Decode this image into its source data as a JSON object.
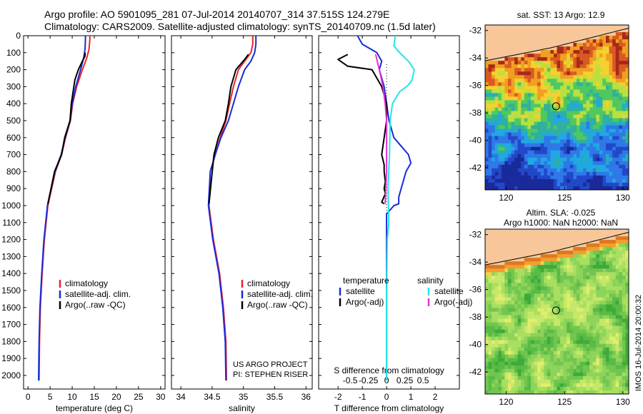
{
  "header": {
    "line1": "Argo profile: AO 5901095_281 07-Jul-2014 20140707_314 37.515S 124.279E",
    "line2": "Climatology: CARS2009. Satellite-adjusted climatology: synTS_20140709.nc (1.5d later)"
  },
  "credits": {
    "project": "US ARGO PROJECT",
    "pi": "PI: STEPHEN RISER"
  },
  "stamp": "IMOS 16-Jul-2014 20:00:32",
  "maps": {
    "sst": {
      "title": "sat. SST: 13 Argo: 12.9",
      "xticks": [
        "120",
        "125",
        "130"
      ],
      "yticks": [
        "-32",
        "-34",
        "-36",
        "-38",
        "-40",
        "-42"
      ]
    },
    "sla": {
      "title1": "Altim. SLA: -0.025",
      "title2": "Argo h1000: NaN h2000: NaN",
      "xticks": [
        "120",
        "125",
        "130"
      ],
      "yticks": [
        "-32",
        "-34",
        "-36",
        "-38",
        "-40",
        "-42"
      ]
    }
  },
  "colors": {
    "climatology": "#e8262a",
    "satellite": "#1a2bd8",
    "argo": "#000000",
    "sal_satellite": "#25e5e5",
    "sal_argo": "#e830d8",
    "land": "#f7c79a"
  },
  "chart_data": [
    {
      "type": "line",
      "name": "temperature",
      "xlabel": "temperature (deg C)",
      "ylabel": "",
      "xlim": [
        -1,
        31
      ],
      "ylim": [
        2080,
        0
      ],
      "xticks": [
        0,
        5,
        10,
        15,
        20,
        25,
        30
      ],
      "yticks": [
        0,
        100,
        200,
        300,
        400,
        500,
        600,
        700,
        800,
        900,
        1000,
        1100,
        1200,
        1300,
        1400,
        1500,
        1600,
        1700,
        1800,
        1900,
        2000
      ],
      "legend": {
        "position": "lower-middle",
        "entries": [
          "climatology",
          "satellite-adj. clim.",
          "Argo(..raw -QC)"
        ]
      },
      "series": [
        {
          "name": "climatology",
          "color": "#e8262a",
          "x": [
            14,
            14,
            13.8,
            13.3,
            12.3,
            11,
            10.1,
            9.6,
            8.5,
            7.6,
            6.2,
            4.5,
            3.7,
            3.2,
            2.8,
            2.6,
            2.5
          ],
          "y": [
            0,
            20,
            80,
            130,
            200,
            300,
            400,
            500,
            600,
            700,
            800,
            1000,
            1200,
            1400,
            1600,
            1800,
            2030
          ]
        },
        {
          "name": "satellite-adj. clim.",
          "color": "#1a2bd8",
          "x": [
            13,
            13,
            12.9,
            12.6,
            11.9,
            10.8,
            10.0,
            9.5,
            8.4,
            7.5,
            6.1,
            4.4,
            3.6,
            3.1,
            2.7,
            2.5,
            2.4
          ],
          "y": [
            0,
            20,
            80,
            130,
            200,
            300,
            400,
            500,
            600,
            700,
            800,
            1000,
            1200,
            1400,
            1600,
            1800,
            2030
          ]
        },
        {
          "name": "Argo(..raw -QC)",
          "color": "#000000",
          "x": [
            12.9,
            12.9,
            12.3,
            11.4,
            10.6,
            10.2,
            9.8,
            9.5,
            8.3,
            7.6,
            6.0,
            4.5
          ],
          "y": [
            100,
            120,
            150,
            200,
            260,
            330,
            400,
            500,
            600,
            700,
            800,
            990
          ]
        }
      ]
    },
    {
      "type": "line",
      "name": "salinity",
      "xlabel": "salinity",
      "ylabel": "",
      "xlim": [
        33.85,
        36.1
      ],
      "ylim": [
        2080,
        0
      ],
      "xticks": [
        34,
        34.5,
        35,
        35.5,
        36
      ],
      "xticklabels": [
        "34",
        "34.5",
        "35",
        "35.5",
        "36"
      ],
      "legend": {
        "position": "lower-middle",
        "entries": [
          "climatology",
          "satellite-adj. clim.",
          "Argo(..raw -QC)"
        ]
      },
      "series": [
        {
          "name": "climatology",
          "color": "#e8262a",
          "x": [
            35.15,
            35.15,
            35.12,
            35.02,
            34.92,
            34.84,
            34.78,
            34.72,
            34.63,
            34.55,
            34.47,
            34.45,
            34.52,
            34.62,
            34.68,
            34.72,
            34.73
          ],
          "y": [
            0,
            50,
            100,
            150,
            200,
            300,
            400,
            500,
            600,
            700,
            800,
            1000,
            1200,
            1400,
            1600,
            1800,
            2030
          ]
        },
        {
          "name": "satellite-adj. clim.",
          "color": "#1a2bd8",
          "x": [
            35.2,
            35.2,
            35.18,
            35.12,
            35.02,
            34.92,
            34.84,
            34.76,
            34.64,
            34.55,
            34.47,
            34.44,
            34.51,
            34.61,
            34.67,
            34.71,
            34.72
          ],
          "y": [
            0,
            50,
            100,
            150,
            200,
            300,
            400,
            500,
            600,
            700,
            800,
            1000,
            1200,
            1400,
            1600,
            1800,
            2030
          ]
        },
        {
          "name": "Argo(..raw -QC)",
          "color": "#000000",
          "x": [
            35.08,
            35.02,
            34.88,
            34.8,
            34.76,
            34.71,
            34.6,
            34.53,
            34.45
          ],
          "y": [
            110,
            140,
            200,
            300,
            400,
            500,
            600,
            700,
            990
          ]
        }
      ]
    },
    {
      "type": "line",
      "name": "differences",
      "xlabel": "T difference from climatology",
      "xlabel2": "S difference from climatology",
      "xlim": [
        -2.8,
        3
      ],
      "xticks": [
        -2,
        -1,
        0,
        1,
        2
      ],
      "s_xticks": [
        -0.5,
        -0.25,
        0,
        0.25,
        0.5
      ],
      "s_xticklabels": [
        "-0.5",
        "-0.25",
        "0",
        "0.25",
        "0.5"
      ],
      "ylim": [
        2080,
        0
      ],
      "legend": {
        "position": "lower-middle",
        "headers": [
          "temperature",
          "salinity"
        ],
        "entries": [
          "satellite",
          "Argo(-adj)",
          "satellite",
          "Argo(-adj)"
        ]
      },
      "series": [
        {
          "name": "satellite",
          "group": "temperature",
          "color": "#1a2bd8",
          "x": [
            -1.2,
            -1.0,
            -0.4,
            -0.2,
            -0.3,
            -0.1,
            0,
            0.1,
            0.3,
            0.6,
            0.9,
            1.0,
            0.8,
            0.7,
            0.6,
            0.5,
            0.5,
            0.3,
            0,
            0,
            0
          ],
          "y": [
            0,
            50,
            100,
            150,
            200,
            300,
            400,
            500,
            600,
            650,
            700,
            750,
            800,
            850,
            900,
            950,
            990,
            1000,
            1050,
            1500,
            2030
          ]
        },
        {
          "name": "Argo(-adj)",
          "group": "temperature",
          "color": "#000000",
          "x": [
            -1.6,
            -2.0,
            -1.6,
            -0.6,
            -0.2,
            0,
            0,
            -0.1,
            -0.2,
            -0.1,
            -0.1,
            -0.05,
            -0.1,
            -0.05,
            -0.2,
            -0.1
          ],
          "y": [
            110,
            140,
            180,
            200,
            300,
            400,
            500,
            600,
            700,
            760,
            800,
            860,
            900,
            930,
            980,
            990
          ]
        },
        {
          "name": "satellite",
          "group": "salinity",
          "color": "#25e5e5",
          "x": [
            0.12,
            0.1,
            0.18,
            0.3,
            0.38,
            0.35,
            0.3,
            0.18,
            0.08,
            0.05,
            0.04,
            0.02,
            0.03,
            0.01,
            0,
            0
          ],
          "y": [
            0,
            60,
            100,
            150,
            200,
            260,
            290,
            330,
            400,
            500,
            700,
            900,
            1100,
            1200,
            1500,
            2030
          ]
        },
        {
          "name": "Argo(-adj)",
          "group": "salinity",
          "color": "#e830d8",
          "x": [
            -0.15,
            -0.1,
            -0.05,
            -0.02,
            0,
            0,
            0,
            -0.02
          ],
          "y": [
            110,
            200,
            300,
            400,
            500,
            600,
            800,
            990
          ]
        }
      ]
    }
  ]
}
